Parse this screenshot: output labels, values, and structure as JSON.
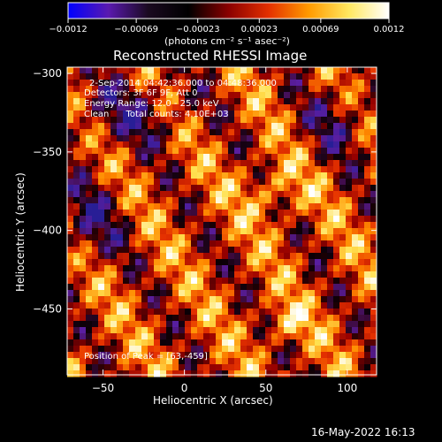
{
  "chart_data": {
    "type": "heatmap",
    "title": "Reconstructed RHESSI Image",
    "xlabel": "Heliocentric X (arcsec)",
    "ylabel": "Heliocentric Y (arcsec)",
    "xlim": [
      -72,
      118
    ],
    "ylim": [
      -492,
      -296
    ],
    "x_ticks": [
      -50,
      0,
      50,
      100
    ],
    "y_ticks": [
      -300,
      -350,
      -400,
      -450
    ],
    "x_tick_labels": [
      "−50",
      "0",
      "50",
      "100"
    ],
    "y_tick_labels": [
      "−300",
      "−350",
      "−400",
      "−450"
    ],
    "colorbar": {
      "range": [
        -0.0012,
        0.0012
      ],
      "ticks": [
        -0.0012,
        -0.00069,
        -0.00023,
        0.00023,
        0.00069,
        0.0012
      ],
      "tick_labels": [
        "−0.0012",
        "−0.00069",
        "−0.00023",
        "0.00023",
        "0.00069",
        "0.0012"
      ],
      "unit_label": "(photons cm⁻² s⁻¹ asec⁻²)",
      "colormap": [
        "#0000ff",
        "#5a1ab0",
        "#1a0a20",
        "#000000",
        "#8a0000",
        "#e43000",
        "#ff9a00",
        "#ffe860",
        "#ffffff"
      ]
    },
    "annotations": {
      "time_range": "2-Sep-2014 04:42:36.000 to 04:48:36.000",
      "detectors": "Detectors: 3F 6F 9F, Att 0",
      "energy": "Energy Range: 12.0 - 25.0 keV",
      "method": "Clean      Total counts: 4.10E+03",
      "peak": "Position of Peak = [63,-459]"
    },
    "peak": {
      "x": 63,
      "y": -459
    }
  },
  "footer": {
    "timestamp": "16-May-2022 16:13"
  }
}
